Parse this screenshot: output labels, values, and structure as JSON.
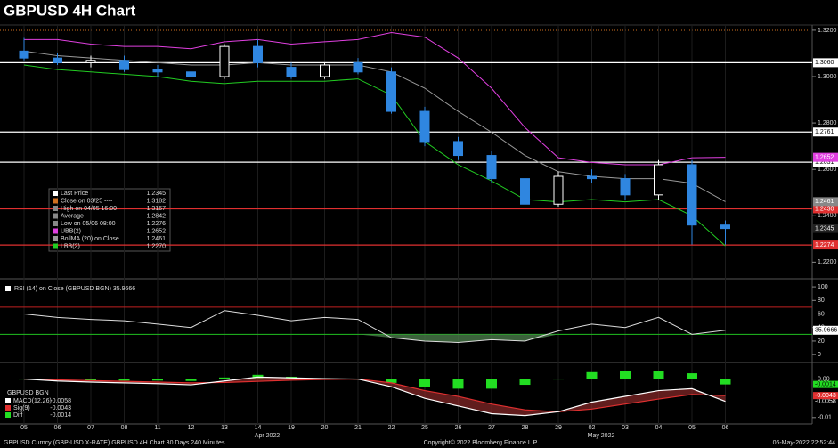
{
  "chart_data": [
    {
      "type": "candlestick",
      "title": "GBPUSD 4H Chart",
      "categories": [
        "05",
        "06",
        "07",
        "08",
        "11",
        "12",
        "13",
        "14",
        "19",
        "20",
        "21",
        "22",
        "25",
        "26",
        "27",
        "28",
        "29",
        "02",
        "03",
        "04",
        "05",
        "06"
      ],
      "x_group_labels": [
        "Apr 2022",
        "May 2022"
      ],
      "open": [
        1.311,
        1.308,
        1.306,
        1.307,
        1.303,
        1.302,
        1.3,
        1.313,
        1.304,
        1.3,
        1.306,
        1.302,
        1.285,
        1.272,
        1.266,
        1.256,
        1.245,
        1.257,
        1.256,
        1.249,
        1.262,
        1.236
      ],
      "high": [
        1.3167,
        1.31,
        1.309,
        1.309,
        1.305,
        1.304,
        1.314,
        1.316,
        1.306,
        1.306,
        1.308,
        1.304,
        1.287,
        1.274,
        1.268,
        1.258,
        1.259,
        1.26,
        1.258,
        1.264,
        1.264,
        1.238
      ],
      "low": [
        1.307,
        1.305,
        1.304,
        1.302,
        1.3,
        1.299,
        1.299,
        1.304,
        1.299,
        1.299,
        1.301,
        1.284,
        1.27,
        1.264,
        1.254,
        1.243,
        1.244,
        1.254,
        1.247,
        1.247,
        1.2276,
        1.2276
      ],
      "close": [
        1.308,
        1.306,
        1.307,
        1.303,
        1.302,
        1.3,
        1.313,
        1.306,
        1.3,
        1.305,
        1.302,
        1.285,
        1.272,
        1.266,
        1.256,
        1.245,
        1.257,
        1.256,
        1.249,
        1.262,
        1.236,
        1.2345
      ],
      "up_color": "#ffffff",
      "down_color": "#2f86e0",
      "series": [
        {
          "name": "UBB(2)",
          "color": "#e040e0",
          "values": [
            1.316,
            1.316,
            1.314,
            1.313,
            1.313,
            1.312,
            1.315,
            1.316,
            1.314,
            1.315,
            1.316,
            1.319,
            1.317,
            1.308,
            1.295,
            1.278,
            1.265,
            1.263,
            1.262,
            1.262,
            1.265,
            1.2652
          ]
        },
        {
          "name": "BollMA (20)  on Close",
          "color": "#9a9a9a",
          "values": [
            1.311,
            1.309,
            1.308,
            1.307,
            1.306,
            1.305,
            1.305,
            1.306,
            1.305,
            1.305,
            1.305,
            1.302,
            1.295,
            1.285,
            1.276,
            1.266,
            1.259,
            1.257,
            1.256,
            1.256,
            1.254,
            1.2461
          ]
        },
        {
          "name": "LBB(2)",
          "color": "#22cc22",
          "values": [
            1.305,
            1.303,
            1.302,
            1.301,
            1.3,
            1.298,
            1.297,
            1.298,
            1.298,
            1.298,
            1.299,
            1.292,
            1.272,
            1.262,
            1.255,
            1.247,
            1.246,
            1.247,
            1.246,
            1.247,
            1.24,
            1.227
          ]
        }
      ],
      "ylim": [
        1.214,
        1.3215
      ],
      "yticks": [
        {
          "value": 1.32,
          "label": "1.3200"
        },
        {
          "value": 1.3,
          "label": "1.3000"
        },
        {
          "value": 1.28,
          "label": "1.2800"
        },
        {
          "value": 1.26,
          "label": "1.2600"
        },
        {
          "value": 1.24,
          "label": "1.2400"
        },
        {
          "value": 1.22,
          "label": "1.2200"
        }
      ],
      "levels": [
        {
          "value": 1.306,
          "label": "1.3060",
          "color": "#ffffff"
        },
        {
          "value": 1.2761,
          "label": "1.2761",
          "color": "#ffffff"
        },
        {
          "value": 1.2631,
          "label": "1.2631",
          "color": "#ffffff"
        },
        {
          "value": 1.243,
          "label": "1.2430",
          "color": "#e03030"
        },
        {
          "value": 1.2274,
          "label": "1.2274",
          "color": "#e03030"
        }
      ],
      "price_tags": [
        {
          "value": 1.2652,
          "label": "1.2652",
          "color": "#e040e0"
        },
        {
          "value": 1.2461,
          "label": "1.2461",
          "color": "#888888"
        },
        {
          "value": 1.2345,
          "label": "1.2345",
          "color": "#222222"
        }
      ],
      "legend": [
        [
          "Last Price",
          "1.2345"
        ],
        [
          "Close on 03/25 ----",
          "1.3182"
        ],
        [
          "High on 04/05 16:00",
          "1.3167"
        ],
        [
          "Average",
          "1.2842"
        ],
        [
          "Low on 05/06 08:00",
          "1.2276"
        ],
        [
          "UBB(2)",
          "1.2652"
        ],
        [
          "BollMA (20)  on Close",
          "1.2461"
        ],
        [
          "LBB(2)",
          "1.2270"
        ]
      ]
    },
    {
      "type": "line",
      "title": "RSI (14)  on Close (GBPUSD BGN) 35.9666",
      "series": [
        {
          "color": "#dddddd",
          "values": [
            60,
            55,
            52,
            50,
            45,
            40,
            65,
            58,
            50,
            55,
            52,
            25,
            20,
            18,
            22,
            20,
            35,
            45,
            40,
            55,
            30,
            35.9666
          ]
        }
      ],
      "thresholds": [
        {
          "value": 70,
          "color": "#c02020"
        },
        {
          "value": 30,
          "color": "#20c020"
        }
      ],
      "tag": {
        "value": 35.9666,
        "label": "35.9666"
      },
      "ylim": [
        -9,
        108
      ],
      "yticks": [
        0,
        20,
        40,
        60,
        80,
        100
      ]
    },
    {
      "type": "macd",
      "legend_title": "GBPUSD BGN",
      "series": [
        {
          "name": "MACD(12,26)",
          "value_text": "-0.0058",
          "color": "#ffffff",
          "values": [
            0,
            -0.0005,
            -0.0008,
            -0.001,
            -0.0012,
            -0.0015,
            -0.0005,
            0.0005,
            0.0003,
            0.0001,
            0,
            -0.002,
            -0.005,
            -0.007,
            -0.009,
            -0.0095,
            -0.0085,
            -0.006,
            -0.0045,
            -0.003,
            -0.0025,
            -0.0058
          ]
        },
        {
          "name": "Sig(9)",
          "value_text": "-0.0043",
          "color": "#e03030",
          "values": [
            0,
            -0.0002,
            -0.0004,
            -0.0006,
            -0.0008,
            -0.001,
            -0.0009,
            -0.0006,
            -0.0003,
            -0.0001,
            0,
            -0.001,
            -0.003,
            -0.0045,
            -0.0065,
            -0.008,
            -0.0085,
            -0.0078,
            -0.0065,
            -0.0052,
            -0.004,
            -0.0043
          ]
        },
        {
          "name": "Diff",
          "value_text": "-0.0014",
          "color": "#22dd22",
          "values": [
            0,
            -0.0003,
            -0.0004,
            -0.0004,
            -0.0004,
            -0.0005,
            0.0004,
            0.0011,
            0.0006,
            0.0002,
            0,
            -0.001,
            -0.002,
            -0.0025,
            -0.0025,
            -0.0015,
            0,
            0.0018,
            0.002,
            0.0022,
            0.0015,
            -0.0014
          ]
        }
      ],
      "ylim": [
        -0.0112,
        0.0036
      ],
      "yticks": [
        {
          "value": 0,
          "label": "0.00"
        },
        {
          "value": -0.01,
          "label": "-0.01"
        }
      ]
    }
  ],
  "footer": {
    "left": "GBPUSD Curncy (GBP-USD X-RATE) GBPUSD 4H Chart 30 Days 240 Minutes",
    "center": "Copyright© 2022 Bloomberg Finance L.P.",
    "right": "06-May-2022 22:52:44"
  }
}
